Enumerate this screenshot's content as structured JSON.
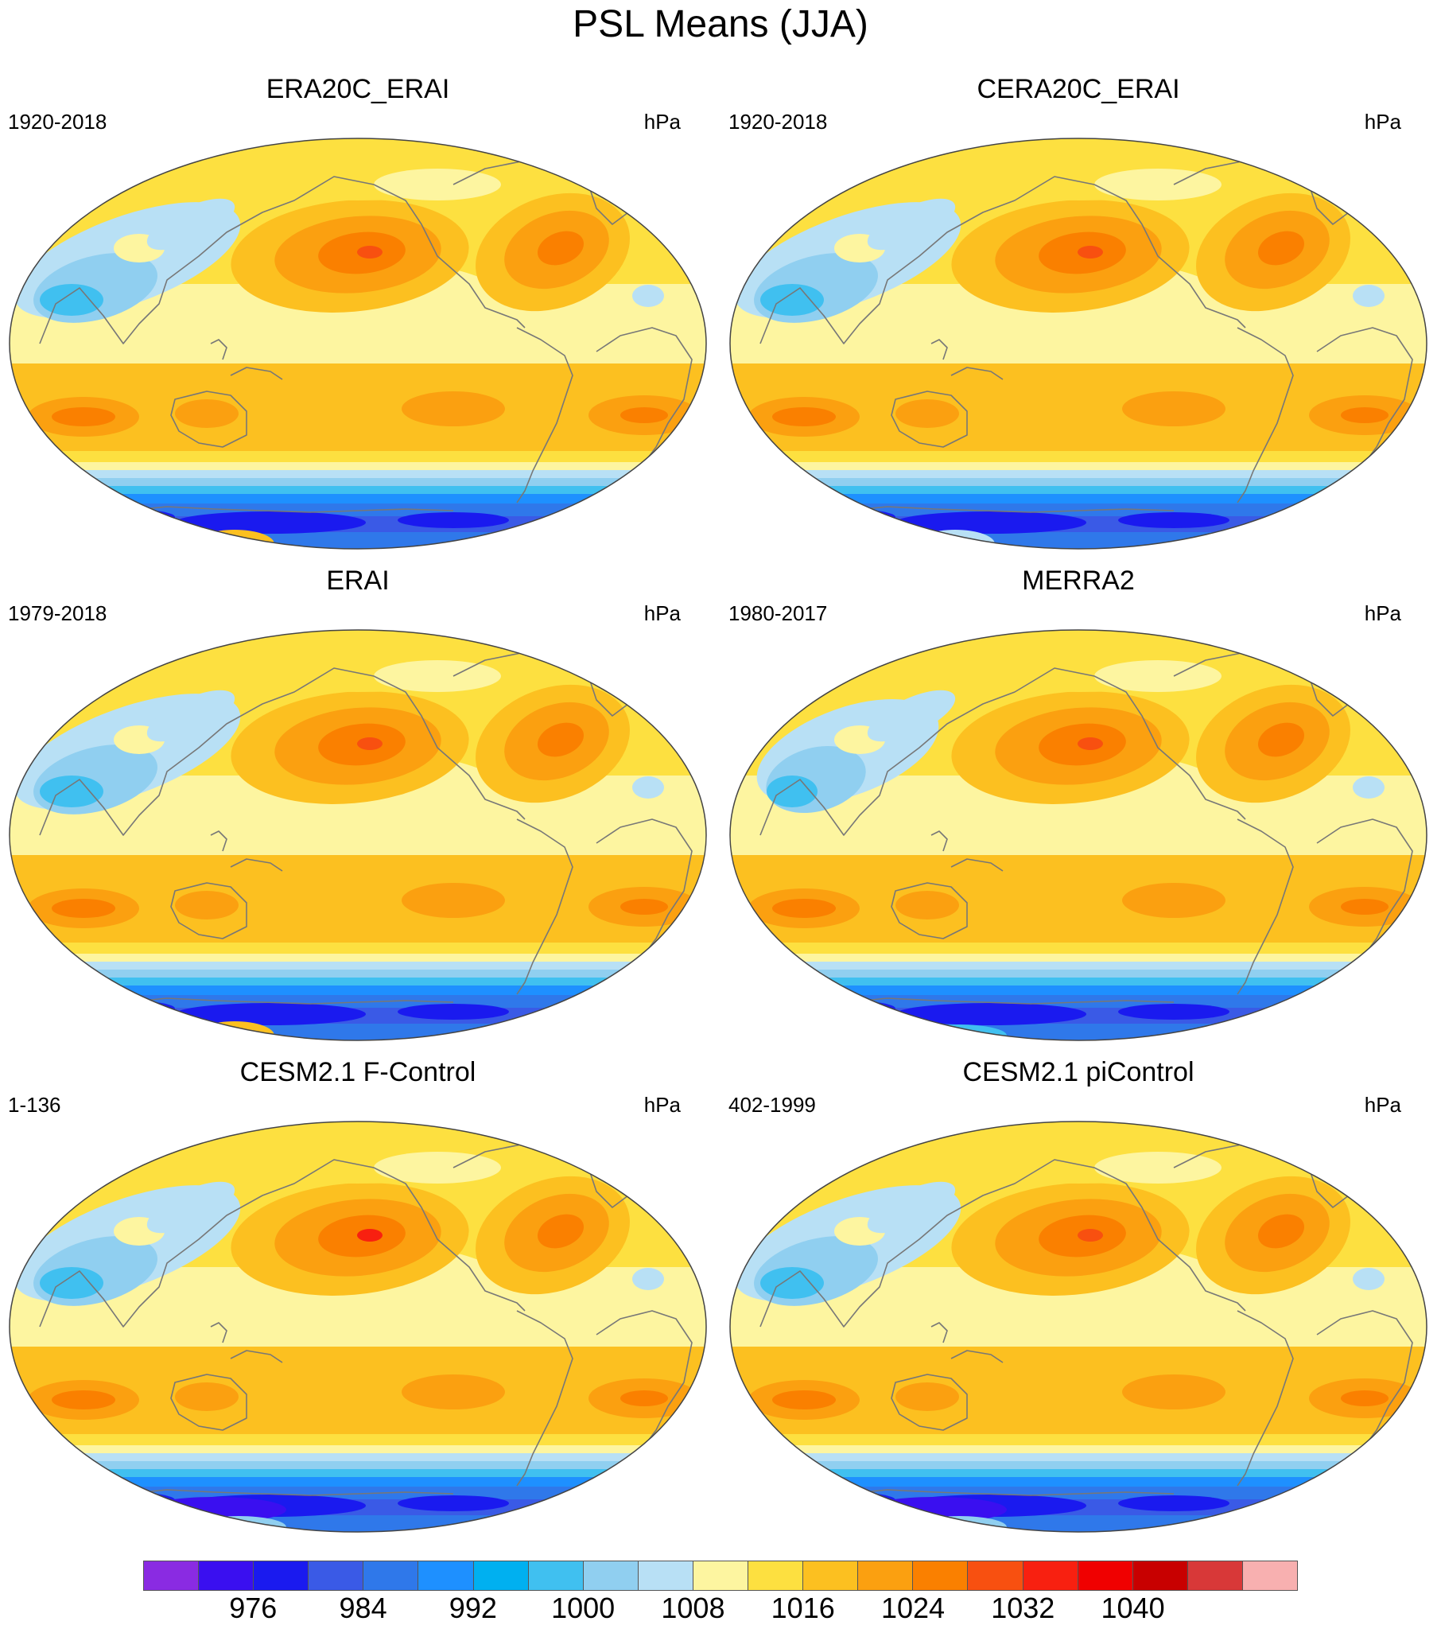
{
  "title": "PSL Means (JJA)",
  "panels": [
    {
      "title": "ERA20C_ERAI",
      "left": "1920-2018",
      "right": "hPa"
    },
    {
      "title": "CERA20C_ERAI",
      "left": "1920-2018",
      "right": "hPa"
    },
    {
      "title": "ERAI",
      "left": "1979-2018",
      "right": "hPa"
    },
    {
      "title": "MERRA2",
      "left": "1980-2017",
      "right": "hPa"
    },
    {
      "title": "CESM2.1 F-Control",
      "left": "1-136",
      "right": "hPa"
    },
    {
      "title": "CESM2.1 piControl",
      "left": "402-1999",
      "right": "hPa"
    }
  ],
  "colorbar": {
    "colors": [
      "#8a2be2",
      "#3a0ff0",
      "#1a1aef",
      "#3a5ae6",
      "#2f78ea",
      "#1e90ff",
      "#00b0f0",
      "#40c0f0",
      "#90cff0",
      "#b8e0f5",
      "#fdf5a0",
      "#fde040",
      "#fcc020",
      "#fba010",
      "#fa8000",
      "#f85010",
      "#f82010",
      "#f00000",
      "#c80000",
      "#d83838",
      "#f8b0b0"
    ],
    "labels": [
      "976",
      "984",
      "992",
      "1000",
      "1008",
      "1016",
      "1024",
      "1032",
      "1040"
    ]
  }
}
